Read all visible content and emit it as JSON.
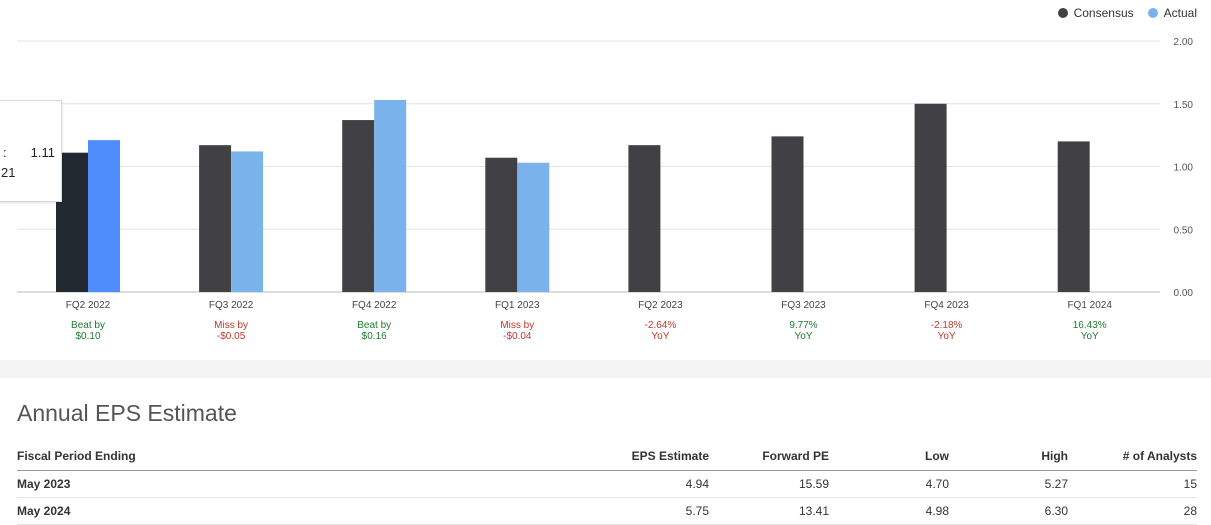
{
  "legend": {
    "consensus_label": "Consensus",
    "actual_label": "Actual",
    "consensus_color": "#414145",
    "actual_color": "#7ab3ec",
    "highlight_consensus_color": "#222931",
    "highlight_actual_color": "#4f8dfc"
  },
  "tooltip": {
    "consensus_label_fragment": ":",
    "consensus_value": "1.11",
    "actual_value_fragment": "21"
  },
  "chart_data": {
    "type": "bar",
    "categories": [
      "FQ2 2022",
      "FQ3 2022",
      "FQ4 2022",
      "FQ1 2023",
      "FQ2 2023",
      "FQ3 2023",
      "FQ4 2023",
      "FQ1 2024"
    ],
    "series": [
      {
        "name": "Consensus",
        "values": [
          1.11,
          1.17,
          1.37,
          1.07,
          1.17,
          1.24,
          1.5,
          1.2
        ]
      },
      {
        "name": "Actual",
        "values": [
          1.21,
          1.12,
          1.53,
          1.03,
          null,
          null,
          null,
          null
        ]
      }
    ],
    "highlighted_index": 0,
    "ylim": [
      0,
      2.0
    ],
    "yticks": [
      "0.00",
      "0.50",
      "1.00",
      "1.50",
      "2.00"
    ],
    "ytick_values": [
      0,
      0.5,
      1.0,
      1.5,
      2.0
    ],
    "grid": true,
    "legend_position": "top-right",
    "annotations": [
      {
        "line1": "Beat by",
        "line2": "$0.10",
        "status": "positive"
      },
      {
        "line1": "Miss by",
        "line2": "-$0.05",
        "status": "negative"
      },
      {
        "line1": "Beat by",
        "line2": "$0.16",
        "status": "positive"
      },
      {
        "line1": "Miss by",
        "line2": "-$0.04",
        "status": "negative"
      },
      {
        "line1": "-2.64%",
        "line2": "YoY",
        "status": "negative"
      },
      {
        "line1": "9.77%",
        "line2": "YoY",
        "status": "positive"
      },
      {
        "line1": "-2.18%",
        "line2": "YoY",
        "status": "negative"
      },
      {
        "line1": "16.43%",
        "line2": "YoY",
        "status": "positive"
      }
    ],
    "positive_color": "#1e7b2f",
    "negative_color": "#c0392b"
  },
  "annual": {
    "title": "Annual EPS Estimate",
    "columns": [
      "Fiscal Period Ending",
      "EPS Estimate",
      "Forward PE",
      "Low",
      "High",
      "# of Analysts"
    ],
    "rows": [
      [
        "May 2023",
        "4.94",
        "15.59",
        "4.70",
        "5.27",
        "15"
      ],
      [
        "May 2024",
        "5.75",
        "13.41",
        "4.98",
        "6.30",
        "28"
      ]
    ]
  }
}
